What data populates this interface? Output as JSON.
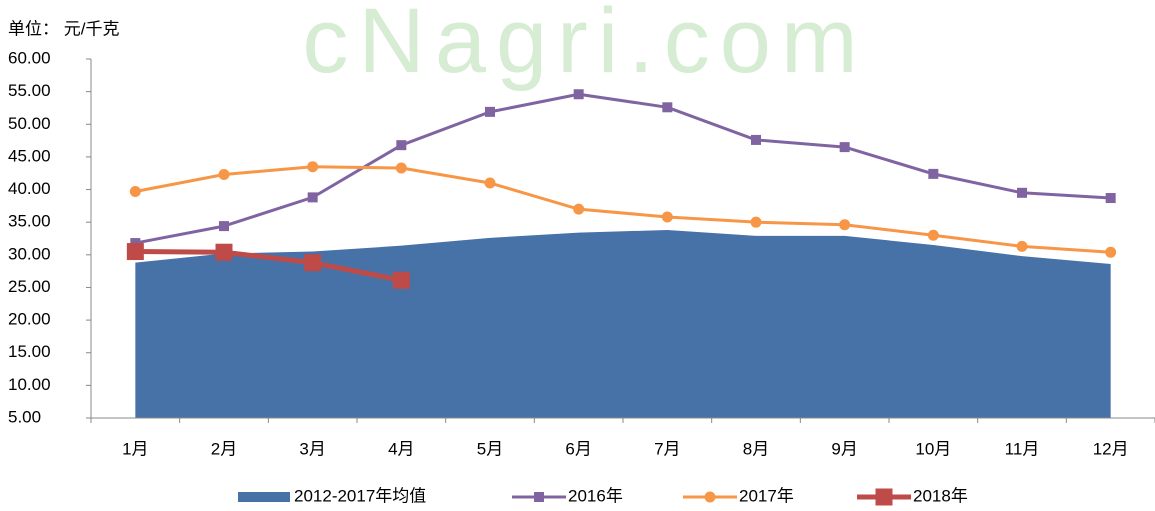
{
  "chart_data": {
    "type": "line",
    "watermark": "cNagri.com",
    "unit_label": "单位： 元/千克",
    "categories": [
      "1月",
      "2月",
      "3月",
      "4月",
      "5月",
      "6月",
      "7月",
      "8月",
      "9月",
      "10月",
      "11月",
      "12月"
    ],
    "ylim": [
      5,
      60
    ],
    "yticks": [
      {
        "value": 5,
        "label": "5.00"
      },
      {
        "value": 10,
        "label": "10.00"
      },
      {
        "value": 15,
        "label": "15.00"
      },
      {
        "value": 20,
        "label": "20.00"
      },
      {
        "value": 25,
        "label": "25.00"
      },
      {
        "value": 30,
        "label": "30.00"
      },
      {
        "value": 35,
        "label": "35.00"
      },
      {
        "value": 40,
        "label": "40.00"
      },
      {
        "value": 45,
        "label": "45.00"
      },
      {
        "value": 50,
        "label": "50.00"
      },
      {
        "value": 55,
        "label": "55.00"
      },
      {
        "value": 60,
        "label": "60.00"
      }
    ],
    "grid": false,
    "legend": "bottom",
    "series": [
      {
        "name": "2012-2017年均值",
        "kind": "area",
        "color": "#4672a8",
        "values": [
          28.8,
          30.2,
          30.5,
          31.4,
          32.6,
          33.4,
          33.8,
          32.9,
          32.9,
          31.5,
          29.8,
          28.6
        ]
      },
      {
        "name": "2016年",
        "kind": "line",
        "marker": "square",
        "color": "#8064a2",
        "values": [
          31.8,
          34.4,
          38.8,
          46.8,
          51.9,
          54.6,
          52.6,
          47.6,
          46.5,
          42.4,
          39.5,
          38.7
        ]
      },
      {
        "name": "2017年",
        "kind": "line",
        "marker": "circle",
        "color": "#f79646",
        "values": [
          39.7,
          42.3,
          43.5,
          43.3,
          41.0,
          37.0,
          35.8,
          35.0,
          34.6,
          33.0,
          31.3,
          30.4
        ]
      },
      {
        "name": "2018年",
        "kind": "line",
        "marker": "bigsquare",
        "color": "#be4b48",
        "values": [
          30.5,
          30.4,
          28.8,
          26.1,
          null,
          null,
          null,
          null,
          null,
          null,
          null,
          null
        ]
      }
    ]
  }
}
